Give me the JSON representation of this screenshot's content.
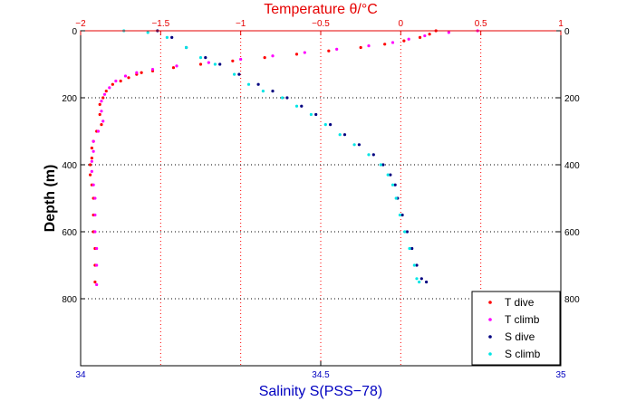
{
  "chart_data": {
    "type": "scatter",
    "title_top_axis": "Temperature θ/°C",
    "xlabel": "Salinity S(PSS−78)",
    "ylabel": "Depth (m)",
    "temperature_axis": {
      "range": [
        -2,
        1
      ],
      "ticks": [
        -2,
        -1.5,
        -1,
        -0.5,
        0,
        0.5,
        1
      ],
      "tick_labels": [
        "−2",
        "−1.5",
        "−1",
        "−0.5",
        "0",
        "0.5",
        "1"
      ],
      "color": "#e60000"
    },
    "salinity_axis": {
      "range": [
        34,
        35
      ],
      "ticks": [
        34,
        34.5,
        35
      ],
      "tick_labels": [
        "34",
        "34.5",
        "35"
      ],
      "color": "#0000c0"
    },
    "depth_axis": {
      "range": [
        0,
        1000
      ],
      "reversed": true,
      "ticks": [
        0,
        200,
        400,
        600,
        800
      ],
      "tick_labels": [
        "0",
        "200",
        "400",
        "600",
        "800"
      ]
    },
    "grid": true,
    "legend": {
      "placement": "bottom-right",
      "entries": [
        "T dive",
        "T climb",
        "S dive",
        "S climb"
      ]
    },
    "series": [
      {
        "name": "T dive",
        "variable": "temperature",
        "color": "#ff0000",
        "points": [
          [
            0.22,
            0
          ],
          [
            0.18,
            10
          ],
          [
            0.12,
            20
          ],
          [
            0.02,
            30
          ],
          [
            -0.1,
            40
          ],
          [
            -0.25,
            50
          ],
          [
            -0.45,
            60
          ],
          [
            -0.65,
            70
          ],
          [
            -0.85,
            80
          ],
          [
            -1.05,
            90
          ],
          [
            -1.25,
            100
          ],
          [
            -1.42,
            110
          ],
          [
            -1.55,
            120
          ],
          [
            -1.62,
            125
          ],
          [
            -1.65,
            130
          ],
          [
            -1.7,
            140
          ],
          [
            -1.75,
            150
          ],
          [
            -1.8,
            160
          ],
          [
            -1.84,
            180
          ],
          [
            -1.86,
            200
          ],
          [
            -1.88,
            220
          ],
          [
            -1.88,
            250
          ],
          [
            -1.87,
            280
          ],
          [
            -1.9,
            300
          ],
          [
            -1.92,
            330
          ],
          [
            -1.93,
            350
          ],
          [
            -1.93,
            380
          ],
          [
            -1.94,
            400
          ],
          [
            -1.94,
            430
          ],
          [
            -1.93,
            460
          ],
          [
            -1.92,
            500
          ],
          [
            -1.92,
            550
          ],
          [
            -1.92,
            600
          ],
          [
            -1.91,
            650
          ],
          [
            -1.91,
            700
          ],
          [
            -1.91,
            750
          ]
        ]
      },
      {
        "name": "T climb",
        "variable": "temperature",
        "color": "#ff00ff",
        "points": [
          [
            0.48,
            0
          ],
          [
            0.3,
            5
          ],
          [
            0.15,
            15
          ],
          [
            0.05,
            25
          ],
          [
            -0.05,
            35
          ],
          [
            -0.2,
            45
          ],
          [
            -0.4,
            55
          ],
          [
            -0.6,
            65
          ],
          [
            -0.8,
            75
          ],
          [
            -1.0,
            85
          ],
          [
            -1.2,
            95
          ],
          [
            -1.4,
            105
          ],
          [
            -1.55,
            115
          ],
          [
            -1.65,
            125
          ],
          [
            -1.72,
            135
          ],
          [
            -1.78,
            150
          ],
          [
            -1.82,
            170
          ],
          [
            -1.85,
            190
          ],
          [
            -1.87,
            210
          ],
          [
            -1.87,
            240
          ],
          [
            -1.86,
            270
          ],
          [
            -1.89,
            300
          ],
          [
            -1.92,
            330
          ],
          [
            -1.92,
            360
          ],
          [
            -1.93,
            390
          ],
          [
            -1.93,
            420
          ],
          [
            -1.92,
            460
          ],
          [
            -1.91,
            500
          ],
          [
            -1.91,
            550
          ],
          [
            -1.91,
            600
          ],
          [
            -1.9,
            650
          ],
          [
            -1.9,
            700
          ],
          [
            -1.9,
            758
          ]
        ]
      },
      {
        "name": "S dive",
        "variable": "salinity",
        "color": "#000080",
        "points": [
          [
            34.16,
            0
          ],
          [
            34.19,
            20
          ],
          [
            34.22,
            50
          ],
          [
            34.26,
            80
          ],
          [
            34.29,
            100
          ],
          [
            34.33,
            130
          ],
          [
            34.37,
            160
          ],
          [
            34.4,
            180
          ],
          [
            34.43,
            200
          ],
          [
            34.46,
            225
          ],
          [
            34.49,
            250
          ],
          [
            34.52,
            280
          ],
          [
            34.55,
            310
          ],
          [
            34.58,
            340
          ],
          [
            34.61,
            370
          ],
          [
            34.63,
            400
          ],
          [
            34.645,
            430
          ],
          [
            34.655,
            460
          ],
          [
            34.66,
            500
          ],
          [
            34.67,
            550
          ],
          [
            34.68,
            600
          ],
          [
            34.69,
            650
          ],
          [
            34.7,
            700
          ],
          [
            34.71,
            740
          ],
          [
            34.72,
            750
          ]
        ]
      },
      {
        "name": "S climb",
        "variable": "salinity",
        "color": "#00e5e5",
        "points": [
          [
            34.09,
            0
          ],
          [
            34.14,
            5
          ],
          [
            34.18,
            20
          ],
          [
            34.22,
            50
          ],
          [
            34.25,
            80
          ],
          [
            34.28,
            100
          ],
          [
            34.32,
            130
          ],
          [
            34.35,
            160
          ],
          [
            34.38,
            180
          ],
          [
            34.42,
            200
          ],
          [
            34.45,
            225
          ],
          [
            34.48,
            250
          ],
          [
            34.51,
            280
          ],
          [
            34.54,
            310
          ],
          [
            34.57,
            340
          ],
          [
            34.6,
            370
          ],
          [
            34.625,
            400
          ],
          [
            34.64,
            430
          ],
          [
            34.65,
            460
          ],
          [
            34.657,
            500
          ],
          [
            34.665,
            550
          ],
          [
            34.675,
            600
          ],
          [
            34.685,
            650
          ],
          [
            34.695,
            700
          ],
          [
            34.7,
            740
          ],
          [
            34.705,
            750
          ]
        ]
      }
    ]
  }
}
